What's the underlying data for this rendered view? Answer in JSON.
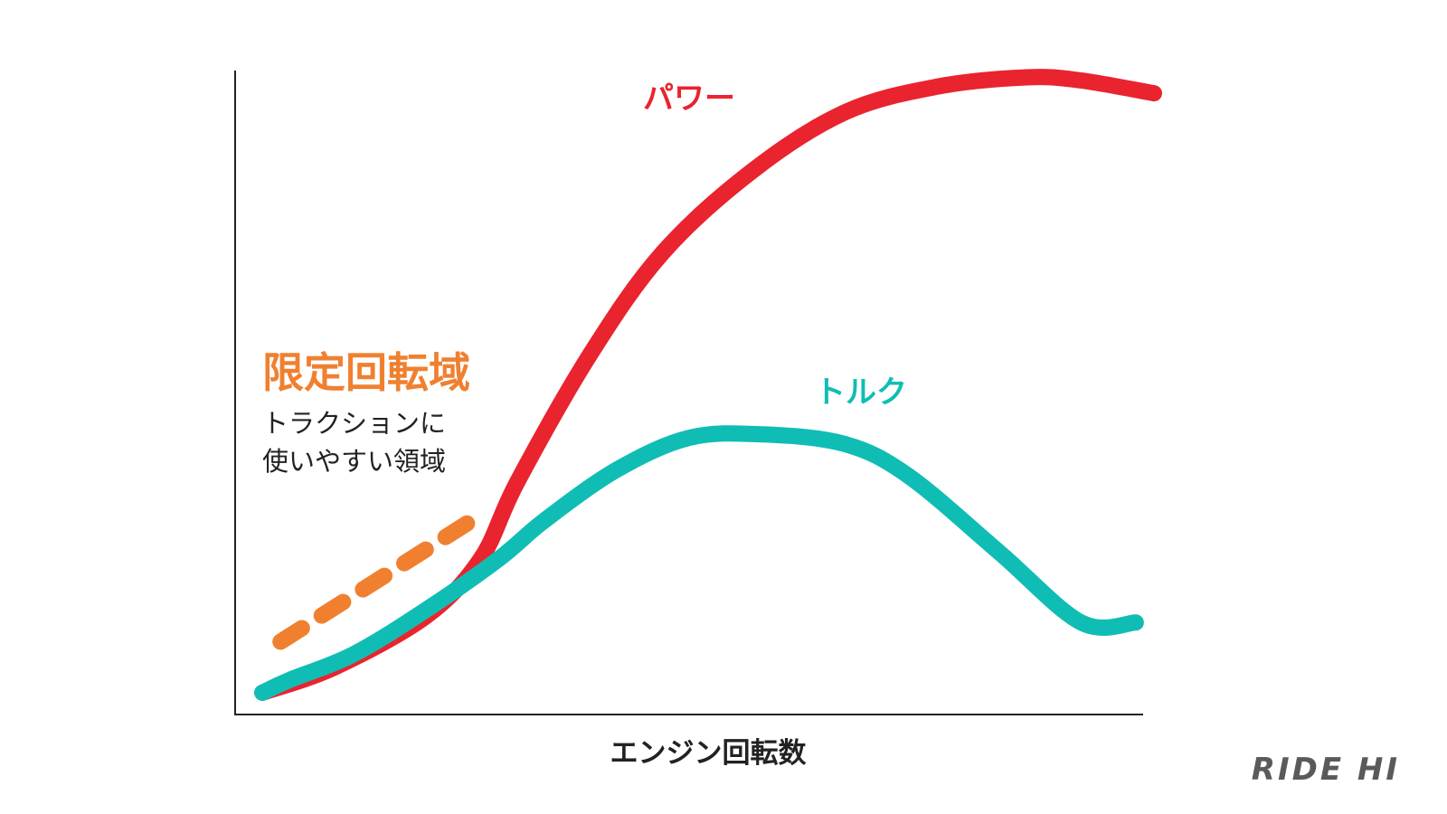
{
  "chart_data": {
    "type": "line",
    "title": "",
    "xlabel": "エンジン回転数",
    "ylabel": "",
    "grid": false,
    "legend": "none",
    "xlim": [
      0,
      100
    ],
    "ylim": [
      0,
      100
    ],
    "series": [
      {
        "name": "パワー",
        "color": "#e9242f",
        "style": "solid",
        "x": [
          2,
          10,
          20,
          26,
          30,
          38,
          46,
          56,
          66,
          76,
          86,
          92,
          100
        ],
        "y": [
          3,
          7,
          15,
          24,
          36,
          56,
          72,
          85,
          94,
          98,
          99.5,
          99,
          97
        ]
      },
      {
        "name": "トルク",
        "color": "#10bdb5",
        "style": "solid",
        "x": [
          2,
          5,
          12,
          20,
          28,
          33,
          41,
          49,
          57,
          66,
          73,
          83,
          92,
          98
        ],
        "y": [
          3,
          5,
          9,
          16,
          24,
          30,
          38,
          43,
          43.5,
          42,
          37,
          25,
          14,
          14
        ]
      },
      {
        "name": "限定回転域",
        "color": "#f08030",
        "style": "dashed",
        "x": [
          4,
          25
        ],
        "y": [
          11,
          30
        ]
      }
    ],
    "annotations": [
      {
        "id": "power",
        "text": "パワー",
        "color": "#e9242f"
      },
      {
        "id": "torque",
        "text": "トルク",
        "color": "#10bdb5"
      },
      {
        "id": "limited_title",
        "text": "限定回転域",
        "color": "#f08030"
      },
      {
        "id": "limited_desc_1",
        "text": "トラクションに",
        "color": "#222222"
      },
      {
        "id": "limited_desc_2",
        "text": "使いやすい領域",
        "color": "#222222"
      }
    ],
    "axis_color": "#222222"
  },
  "brand": {
    "text": "RIDE HI",
    "color": "#5a5a5a"
  }
}
